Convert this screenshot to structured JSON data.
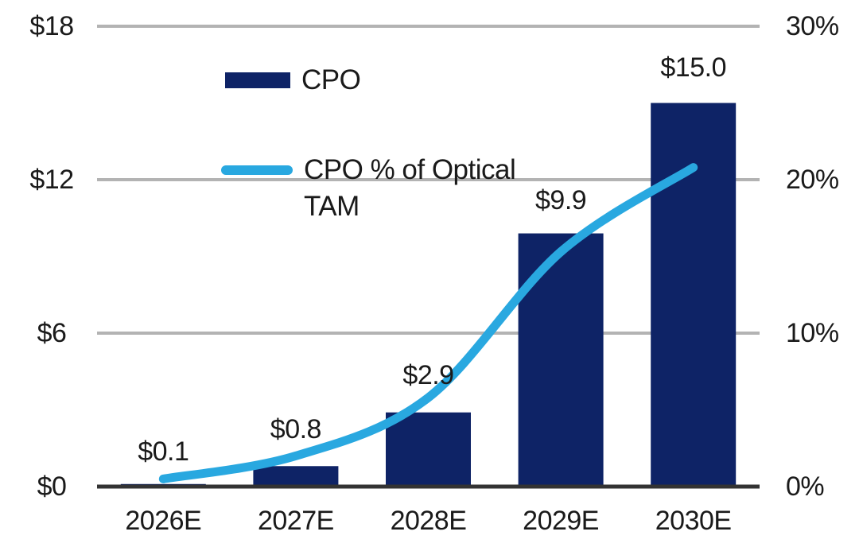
{
  "chart_data": {
    "type": "bar",
    "title": "",
    "categories": [
      "2026E",
      "2027E",
      "2028E",
      "2029E",
      "2030E"
    ],
    "series": [
      {
        "name": "CPO",
        "type": "bar",
        "axis": "left",
        "values": [
          0.1,
          0.8,
          2.9,
          9.9,
          15.0
        ],
        "data_labels": [
          "$0.1",
          "$0.8",
          "$2.9",
          "$9.9",
          "$15.0"
        ],
        "color": "#0e2366"
      },
      {
        "name": "CPO % of Optical TAM",
        "type": "line",
        "axis": "right",
        "values": [
          0.5,
          2.0,
          5.8,
          15.3,
          20.8
        ],
        "color": "#29a8e0"
      }
    ],
    "left_axis": {
      "ticks": [
        "$18",
        "$12",
        "$6",
        "$0"
      ],
      "values": [
        18,
        12,
        6,
        0
      ],
      "min": 0,
      "max": 18
    },
    "right_axis": {
      "ticks": [
        "30%",
        "20%",
        "10%",
        "0%"
      ],
      "values": [
        30,
        20,
        10,
        0
      ],
      "min": 0,
      "max": 30
    },
    "grid": "horizontal",
    "legend_position": "inside-top-left",
    "colors": {
      "bar": "#0e2366",
      "line": "#29a8e0",
      "gridline": "#b3b3b3",
      "axis_line": "#333333",
      "text": "#1a1a1a",
      "background": "#ffffff"
    }
  }
}
